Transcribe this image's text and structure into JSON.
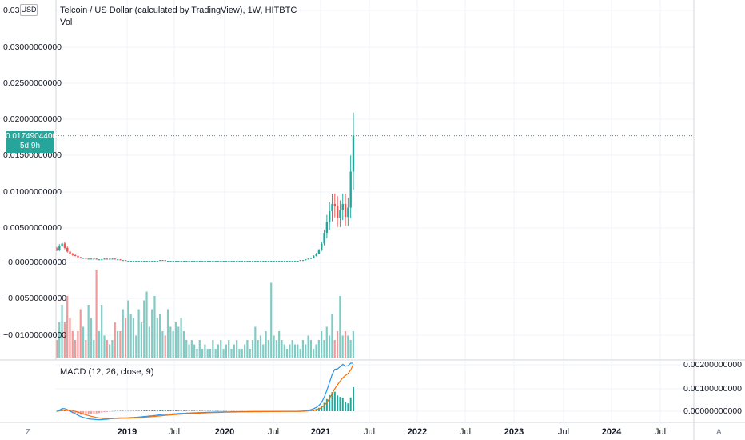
{
  "header": {
    "title": "Telcoin / US Dollar (calculated by TradingView), 1W, HITBTC",
    "volume_label": "Vol",
    "currency_button": "USD"
  },
  "price_scale": {
    "labels": [
      "0.03",
      "0.03000000000",
      "0.02500000000",
      "0.02000000000",
      "0.01500000000",
      "0.01000000000",
      "0.00500000000",
      "−0.00000000000",
      "−0.00500000000",
      "−0.01000000000"
    ],
    "current_price": "0.01749044009",
    "countdown": "5d 9h"
  },
  "macd": {
    "legend": "MACD (12, 26, close, 9)",
    "scale_labels": [
      "0.00200000000",
      "0.00100000000",
      "0.00000000000"
    ]
  },
  "time_axis": {
    "labels": [
      "2019",
      "Jul",
      "2020",
      "Jul",
      "2021",
      "Jul",
      "2022",
      "Jul",
      "2023",
      "Jul",
      "2024",
      "Jul"
    ],
    "year_labels": [
      "2019",
      "2020",
      "2021",
      "2022",
      "2023",
      "2024"
    ]
  },
  "footer": {
    "left_button": "Z",
    "right_button": "A"
  },
  "colors": {
    "up": "#26a69a",
    "down": "#ef5350",
    "up_volume": "#80cbc4",
    "down_volume": "#ef9a9a",
    "macd_line": "#2196f3",
    "signal_line": "#ff6d00",
    "grid": "#f0f3fa",
    "price_line": "#26a69a"
  },
  "chart_data": {
    "type": "candlestick",
    "title": "Telcoin / US Dollar (calculated by TradingView), 1W, HITBTC",
    "timeframe": "1W",
    "exchange": "HITBTC",
    "y_unit": "USD",
    "ylim": [
      -0.012,
      0.033
    ],
    "x_ticks": [
      "2019",
      "Jul",
      "2020",
      "Jul",
      "2021",
      "Jul",
      "2022",
      "Jul",
      "2023",
      "Jul",
      "2024",
      "Jul"
    ],
    "last_price": 0.01749044009,
    "closes": [
      0.0016,
      0.0022,
      0.0025,
      0.0019,
      0.0014,
      0.0011,
      0.0009,
      0.0008,
      0.0006,
      0.0005,
      0.0005,
      0.0004,
      0.0004,
      0.0004,
      0.0004,
      0.0003,
      0.0003,
      0.0003,
      0.0004,
      0.0003,
      0.0004,
      0.0004,
      0.0003,
      0.0003,
      0.0002,
      0.0002,
      0.0001,
      0.0001,
      0.0001,
      0.0001,
      0.0001,
      0.0001,
      0.0001,
      0.0001,
      0.0001,
      0.0001,
      0.0001,
      0.0001,
      0.0001,
      0.0002,
      0.0002,
      0.0001,
      0.0001,
      0.0001,
      0.0001,
      0.0001,
      0.0001,
      0.0001,
      0.0001,
      0.0001,
      0.0001,
      0.0001,
      0.0001,
      0.0001,
      0.0001,
      0.0001,
      0.0001,
      0.0001,
      0.0001,
      0.0001,
      0.0001,
      0.0001,
      0.0001,
      0.0001,
      0.0001,
      0.0001,
      0.0001,
      0.0001,
      0.0001,
      0.0001,
      0.0001,
      0.0001,
      0.0001,
      0.0001,
      0.0001,
      0.0001,
      0.0001,
      0.0001,
      0.0001,
      0.0001,
      0.0001,
      0.0001,
      0.0001,
      0.0001,
      0.0001,
      0.0001,
      0.0001,
      0.0001,
      0.0001,
      0.0001,
      0.0001,
      0.0001,
      0.0002,
      0.0002,
      0.0003,
      0.0004,
      0.0005,
      0.0008,
      0.0011,
      0.0016,
      0.0025,
      0.004,
      0.0055,
      0.007,
      0.008,
      0.0077,
      0.006,
      0.0072,
      0.008,
      0.0062,
      0.0075,
      0.0125,
      0.0175
    ],
    "volume_relative": [
      0.2,
      0.4,
      0.6,
      0.4,
      0.7,
      0.45,
      0.3,
      0.2,
      0.3,
      0.55,
      0.35,
      0.2,
      0.6,
      0.45,
      0.2,
      1.0,
      0.3,
      0.6,
      0.25,
      0.2,
      0.15,
      0.2,
      0.4,
      0.3,
      0.3,
      0.55,
      0.45,
      0.65,
      0.5,
      0.45,
      0.25,
      0.55,
      0.4,
      0.65,
      0.75,
      0.35,
      0.55,
      0.7,
      0.45,
      0.5,
      0.3,
      0.25,
      0.55,
      0.35,
      0.3,
      0.4,
      0.35,
      0.45,
      0.3,
      0.2,
      0.15,
      0.2,
      0.15,
      0.1,
      0.2,
      0.1,
      0.15,
      0.1,
      0.1,
      0.2,
      0.1,
      0.15,
      0.2,
      0.1,
      0.15,
      0.2,
      0.1,
      0.15,
      0.2,
      0.1,
      0.1,
      0.15,
      0.2,
      0.1,
      0.2,
      0.35,
      0.2,
      0.25,
      0.15,
      0.3,
      0.2,
      0.85,
      0.25,
      0.2,
      0.3,
      0.2,
      0.15,
      0.1,
      0.15,
      0.2,
      0.15,
      0.15,
      0.1,
      0.2,
      0.15,
      0.25,
      0.2,
      0.1,
      0.15,
      0.2,
      0.3,
      0.2,
      0.35,
      0.25,
      0.5,
      0.2,
      0.3,
      0.7,
      0.25,
      0.3,
      0.25,
      0.2,
      0.3,
      0.25
    ]
  }
}
